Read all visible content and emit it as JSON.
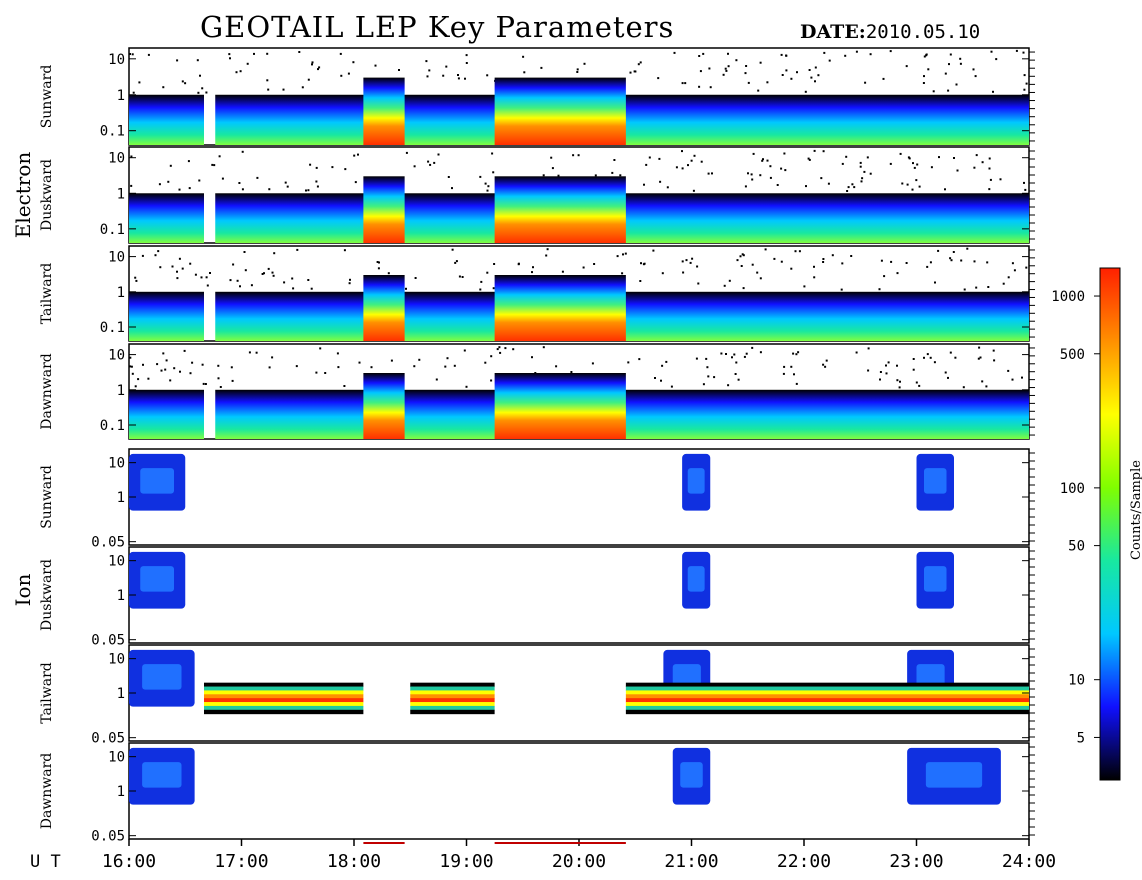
{
  "header": {
    "title": "GEOTAIL LEP Key Parameters",
    "date_label": "DATE:",
    "date_value": "2010.05.10"
  },
  "groups": {
    "electron": "Electron",
    "ion": "Ion"
  },
  "xaxis": {
    "label": "U T",
    "ticks": [
      "16:00",
      "17:00",
      "18:00",
      "19:00",
      "20:00",
      "21:00",
      "22:00",
      "23:00",
      "24:00"
    ]
  },
  "colorbar": {
    "label": "Counts/Sample",
    "ticks": [
      "1000",
      "500",
      "100",
      "50",
      "10",
      "5"
    ],
    "colors": [
      "#000000",
      "#1010ff",
      "#00c8ff",
      "#18e8a0",
      "#80ff00",
      "#ffff00",
      "#ff9000",
      "#ff2000"
    ]
  },
  "chart_data": {
    "type": "heatmap",
    "title": "GEOTAIL LEP Key Parameters",
    "time_range": [
      "16:00",
      "24:00"
    ],
    "colorbar_range": [
      3,
      1400
    ],
    "colorbar_scale": "log",
    "panels": [
      {
        "group": "Electron",
        "label": "Sunward",
        "yscale": "log",
        "ylim": [
          0.04,
          20
        ],
        "yticks": [
          "10",
          "1",
          "0.1"
        ],
        "data_gap": [
          "16:40",
          "16:46"
        ],
        "high_flux_intervals": [
          [
            "18:05",
            "18:27"
          ],
          [
            "19:15",
            "20:25"
          ]
        ]
      },
      {
        "group": "Electron",
        "label": "Duskward",
        "yscale": "log",
        "ylim": [
          0.04,
          20
        ],
        "yticks": [
          "10",
          "1",
          "0.1"
        ],
        "data_gap": [
          "16:40",
          "16:46"
        ],
        "high_flux_intervals": [
          [
            "18:05",
            "18:27"
          ],
          [
            "19:15",
            "20:25"
          ]
        ]
      },
      {
        "group": "Electron",
        "label": "Tailward",
        "yscale": "log",
        "ylim": [
          0.04,
          20
        ],
        "yticks": [
          "10",
          "1",
          "0.1"
        ],
        "data_gap": [
          "16:40",
          "16:46"
        ],
        "high_flux_intervals": [
          [
            "18:05",
            "18:27"
          ],
          [
            "19:15",
            "20:25"
          ]
        ]
      },
      {
        "group": "Electron",
        "label": "Dawnward",
        "yscale": "log",
        "ylim": [
          0.04,
          20
        ],
        "yticks": [
          "10",
          "1",
          "0.1"
        ],
        "data_gap": [
          "16:40",
          "16:46"
        ],
        "high_flux_intervals": [
          [
            "18:05",
            "18:27"
          ],
          [
            "19:15",
            "20:25"
          ]
        ]
      },
      {
        "group": "Ion",
        "label": "Sunward",
        "yscale": "log",
        "ylim": [
          0.04,
          25
        ],
        "yticks": [
          "10",
          "1",
          "0.05"
        ],
        "bursts": [
          [
            "16:00",
            "16:30"
          ],
          [
            "20:55",
            "21:10"
          ],
          [
            "23:00",
            "23:20"
          ]
        ]
      },
      {
        "group": "Ion",
        "label": "Duskward",
        "yscale": "log",
        "ylim": [
          0.04,
          25
        ],
        "yticks": [
          "10",
          "1",
          "0.05"
        ],
        "bursts": [
          [
            "16:00",
            "16:30"
          ],
          [
            "20:55",
            "21:10"
          ],
          [
            "23:00",
            "23:20"
          ]
        ]
      },
      {
        "group": "Ion",
        "label": "Tailward",
        "yscale": "log",
        "ylim": [
          0.04,
          25
        ],
        "yticks": [
          "10",
          "1",
          "0.05"
        ],
        "bursts": [
          [
            "16:00",
            "16:35"
          ],
          [
            "20:45",
            "21:10"
          ],
          [
            "22:55",
            "23:20"
          ]
        ],
        "band_intervals": [
          [
            "16:40",
            "18:05"
          ],
          [
            "18:30",
            "19:15"
          ],
          [
            "20:25",
            "24:00"
          ]
        ]
      },
      {
        "group": "Ion",
        "label": "Dawnward",
        "yscale": "log",
        "ylim": [
          0.04,
          25
        ],
        "yticks": [
          "10",
          "1",
          "0.05"
        ],
        "bursts": [
          [
            "16:00",
            "16:35"
          ],
          [
            "20:50",
            "21:10"
          ],
          [
            "22:55",
            "23:45"
          ]
        ]
      }
    ],
    "marked_intervals": [
      [
        "18:05",
        "18:27"
      ],
      [
        "19:15",
        "20:25"
      ]
    ]
  }
}
